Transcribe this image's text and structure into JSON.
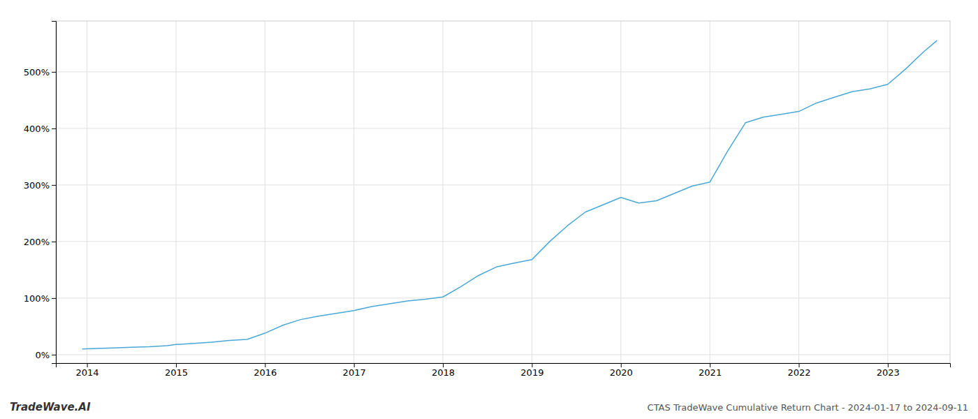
{
  "chart_data": {
    "type": "line",
    "title": "CTAS TradeWave Cumulative Return Chart - 2024-01-17 to 2024-09-11",
    "annotations": [
      "TradeWave.AI"
    ],
    "color": "#4aa8d8",
    "grid": true,
    "xlim": [
      2013.65,
      2023.7
    ],
    "ylim": [
      -15,
      590
    ],
    "xticks": [
      2014,
      2015,
      2016,
      2017,
      2018,
      2019,
      2020,
      2021,
      2022,
      2023
    ],
    "yticks": [
      {
        "value": 0,
        "label": "0%"
      },
      {
        "value": 100,
        "label": "100%"
      },
      {
        "value": 200,
        "label": "200%"
      },
      {
        "value": 300,
        "label": "300%"
      },
      {
        "value": 400,
        "label": "400%"
      },
      {
        "value": 500,
        "label": "500%"
      }
    ],
    "x": [
      2013.95,
      2014.1,
      2014.3,
      2014.5,
      2014.7,
      2014.9,
      2015.0,
      2015.2,
      2015.4,
      2015.6,
      2015.8,
      2016.0,
      2016.2,
      2016.4,
      2016.6,
      2016.8,
      2017.0,
      2017.2,
      2017.4,
      2017.6,
      2017.8,
      2018.0,
      2018.2,
      2018.4,
      2018.6,
      2018.8,
      2019.0,
      2019.2,
      2019.4,
      2019.6,
      2019.8,
      2020.0,
      2020.2,
      2020.4,
      2020.6,
      2020.8,
      2021.0,
      2021.2,
      2021.4,
      2021.6,
      2021.8,
      2022.0,
      2022.2,
      2022.4,
      2022.6,
      2022.8,
      2023.0,
      2023.2,
      2023.4,
      2023.55
    ],
    "values": [
      10,
      11,
      12,
      13,
      14,
      16,
      18,
      20,
      22,
      25,
      27,
      38,
      52,
      62,
      68,
      73,
      78,
      85,
      90,
      95,
      98,
      102,
      120,
      140,
      155,
      162,
      168,
      200,
      228,
      252,
      265,
      278,
      268,
      272,
      285,
      298,
      305,
      360,
      410,
      420,
      425,
      430,
      445,
      455,
      465,
      470,
      478,
      505,
      535,
      555
    ]
  }
}
